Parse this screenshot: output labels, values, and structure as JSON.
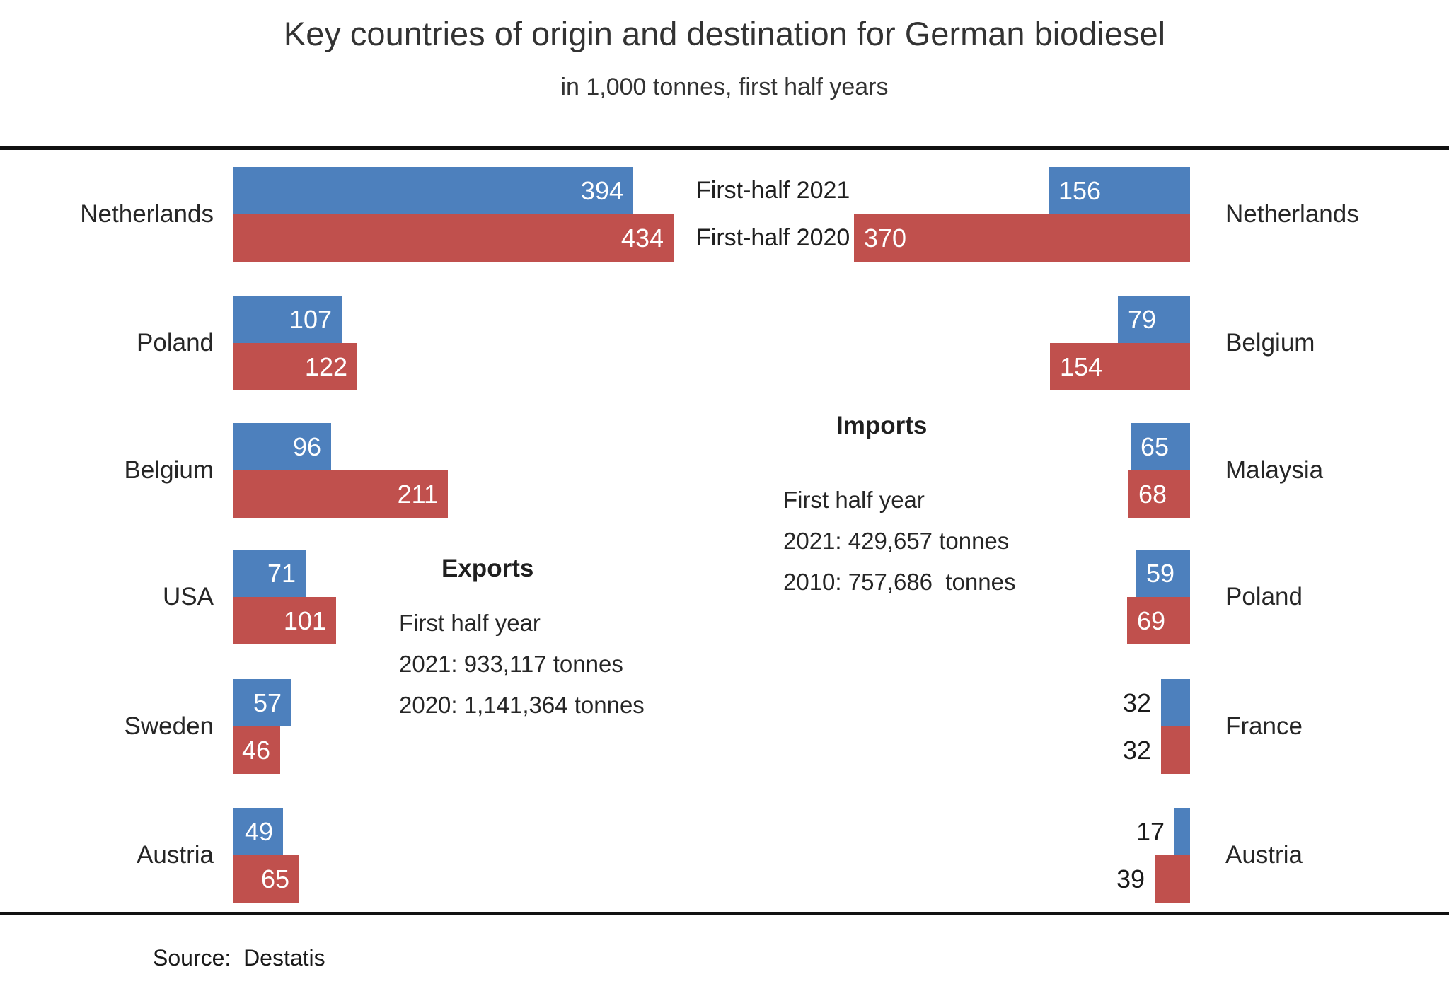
{
  "header": {
    "title": "Key countries of origin and destination for German biodiesel",
    "subtitle": "in 1,000 tonnes, first half years"
  },
  "legend": {
    "series1_label": "First-half 2021",
    "series2_label": "First-half 2020"
  },
  "colors": {
    "blue_2021": "#4d80bd",
    "red_2020": "#c0504d",
    "rule_black": "#111111"
  },
  "exports_panel": {
    "heading": "Exports",
    "period": "First half year",
    "line_2021": "2021: 933,117 tonnes",
    "line_2020": "2020: 1,141,364 tonnes"
  },
  "imports_panel": {
    "heading": "Imports",
    "period": "First half year",
    "line_2021": "2021: 429,657 tonnes",
    "line_2020": "2010: 757,686  tonnes"
  },
  "source": {
    "label": "Source:  Destatis"
  },
  "chart_data": [
    {
      "type": "bar",
      "orientation": "horizontal",
      "panel": "exports",
      "unit": "1,000 tonnes",
      "categories": [
        "Netherlands",
        "Poland",
        "Belgium",
        "USA",
        "Sweden",
        "Austria"
      ],
      "series": [
        {
          "name": "First-half 2021",
          "color": "#4d80bd",
          "values": [
            394,
            107,
            96,
            71,
            57,
            49
          ]
        },
        {
          "name": "First-half 2020",
          "color": "#c0504d",
          "values": [
            434,
            122,
            211,
            101,
            46,
            65
          ]
        }
      ],
      "value_labels": "on",
      "legend_position": "between-charts"
    },
    {
      "type": "bar",
      "orientation": "horizontal-mirrored",
      "panel": "imports",
      "unit": "1,000 tonnes",
      "categories": [
        "Netherlands",
        "Belgium",
        "Malaysia",
        "Poland",
        "France",
        "Austria"
      ],
      "series": [
        {
          "name": "First-half 2021",
          "color": "#4d80bd",
          "values": [
            156,
            79,
            65,
            59,
            32,
            17
          ]
        },
        {
          "name": "First-half 2020",
          "color": "#c0504d",
          "values": [
            370,
            154,
            68,
            69,
            32,
            39
          ]
        }
      ],
      "value_labels": "on",
      "legend_position": "between-charts"
    }
  ]
}
